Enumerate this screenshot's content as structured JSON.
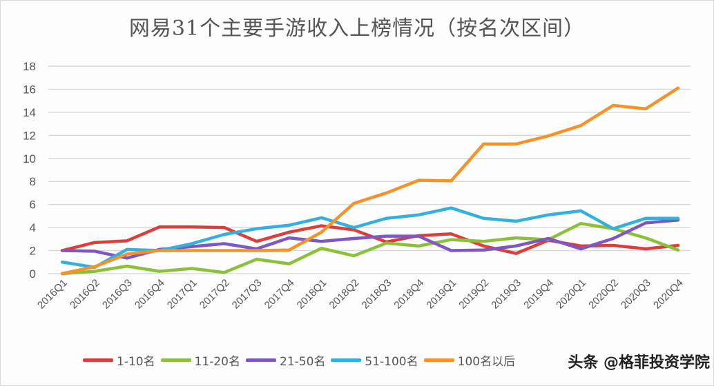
{
  "chart_data": {
    "type": "line",
    "title": "网易31个主要手游收入上榜情况（按名次区间）",
    "xlabel": "",
    "ylabel": "",
    "categories": [
      "2016Q1",
      "2016Q2",
      "2016Q3",
      "2016Q4",
      "2017Q1",
      "2017Q2",
      "2017Q3",
      "2017Q4",
      "2018Q1",
      "2018Q2",
      "2018Q3",
      "2018Q4",
      "2019Q1",
      "2019Q2",
      "2019Q3",
      "2019Q4",
      "2020Q1",
      "2020Q2",
      "2020Q3",
      "2020Q4"
    ],
    "ylim": [
      0,
      18
    ],
    "yticks": [
      0,
      2,
      4,
      6,
      8,
      10,
      12,
      14,
      16,
      18
    ],
    "grid": true,
    "legend_position": "bottom",
    "series": [
      {
        "name": "1-10名",
        "color": "#d9403b",
        "values": [
          2.0,
          2.7,
          2.85,
          4.05,
          4.05,
          4.0,
          2.8,
          3.6,
          4.15,
          3.8,
          2.75,
          3.3,
          3.45,
          2.4,
          1.75,
          2.9,
          2.4,
          2.45,
          2.15,
          2.45
        ]
      },
      {
        "name": "11-20名",
        "color": "#8cc03c",
        "values": [
          0,
          0.2,
          0.65,
          0.2,
          0.45,
          0.1,
          1.25,
          0.85,
          2.2,
          1.55,
          2.65,
          2.4,
          2.95,
          2.8,
          3.1,
          2.95,
          4.35,
          3.9,
          3.1,
          2.05
        ]
      },
      {
        "name": "21-50名",
        "color": "#7e57c2",
        "values": [
          2.0,
          1.95,
          1.35,
          2.1,
          2.35,
          2.6,
          2.15,
          3.1,
          2.8,
          3.05,
          3.25,
          3.25,
          2.0,
          2.05,
          2.4,
          3.05,
          2.15,
          3.05,
          4.4,
          4.65
        ]
      },
      {
        "name": "51-100名",
        "color": "#33b0dc",
        "values": [
          1.0,
          0.55,
          2.1,
          2.0,
          2.6,
          3.4,
          3.9,
          4.2,
          4.85,
          4.0,
          4.8,
          5.1,
          5.7,
          4.8,
          4.55,
          5.1,
          5.45,
          3.9,
          4.8,
          4.8
        ]
      },
      {
        "name": "100名以后",
        "color": "#f5922a",
        "values": [
          0,
          0.6,
          1.7,
          2.0,
          2.0,
          2.0,
          2.0,
          2.05,
          3.6,
          6.1,
          7.0,
          8.1,
          8.05,
          11.25,
          11.25,
          11.95,
          12.85,
          14.6,
          14.3,
          16.1
        ]
      }
    ]
  },
  "watermark": "头条 @格菲投资学院"
}
